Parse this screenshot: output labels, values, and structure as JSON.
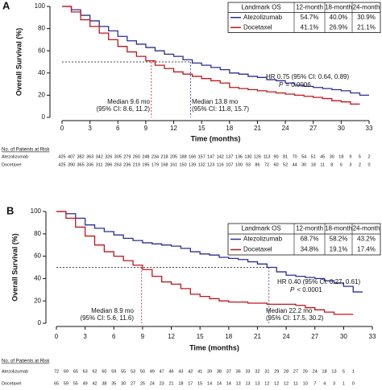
{
  "chart_data": [
    {
      "type": "line",
      "panel_label": "A",
      "xlabel": "Time (months)",
      "ylabel": "Overall Survival (%)",
      "xlim": [
        0,
        33
      ],
      "xticks": [
        0,
        3,
        6,
        9,
        12,
        15,
        18,
        21,
        24,
        27,
        30,
        33
      ],
      "ylim": [
        0,
        100
      ],
      "yticks": [
        0,
        20,
        40,
        60,
        80,
        100
      ],
      "reference_y": 50,
      "series": [
        {
          "name": "Atezolizumab",
          "color": "#2b2f8f",
          "median": 13.8,
          "median_label": "Median 13.8 mo",
          "median_ci": "(95% CI: 11.8, 15.7)",
          "x": [
            0,
            1,
            2,
            3,
            4,
            5,
            6,
            7,
            8,
            9,
            10,
            11,
            12,
            13,
            14,
            15,
            16,
            17,
            18,
            19,
            20,
            21,
            22,
            23,
            24,
            25,
            26,
            27,
            28,
            29,
            30,
            31,
            32,
            33
          ],
          "values": [
            100,
            97,
            92,
            87,
            82,
            78,
            73,
            69,
            66,
            63,
            60,
            57,
            55,
            52,
            49,
            47,
            45,
            43,
            40,
            39,
            37,
            36,
            34,
            33,
            31,
            29,
            28,
            27,
            26,
            25,
            24,
            22,
            20,
            20
          ]
        },
        {
          "name": "Docetaxel",
          "color": "#c0151c",
          "median": 9.6,
          "median_label": "Median 9.6 mo",
          "median_ci": "(95% CI: 8.6, 11.2)",
          "x": [
            0,
            1,
            2,
            3,
            4,
            5,
            6,
            7,
            8,
            9,
            10,
            11,
            12,
            13,
            14,
            15,
            16,
            17,
            18,
            19,
            20,
            21,
            22,
            23,
            24,
            25,
            26,
            27,
            28,
            29,
            30,
            31,
            32
          ],
          "values": [
            100,
            95,
            88,
            82,
            76,
            70,
            64,
            59,
            55,
            51,
            47,
            44,
            41,
            39,
            37,
            35,
            33,
            31,
            27,
            26,
            25,
            24,
            23,
            22,
            21,
            20,
            19,
            18,
            17,
            15,
            14,
            12,
            12
          ]
        }
      ],
      "landmark_table": {
        "header": [
          "Landmark OS",
          "12-month",
          "18-month",
          "24-month"
        ],
        "rows": [
          [
            "54.7%",
            "40.0%",
            "30.9%"
          ],
          [
            "41.1%",
            "26.9%",
            "21.1%"
          ]
        ]
      },
      "hr_text": "HR 0.75 (95% CI: 0.64, 0.89)",
      "p_label": "P",
      "p_value": "= 0.0006",
      "at_risk": {
        "title": "No. of Patients at Risk",
        "rows": [
          [
            425,
            407,
            382,
            363,
            342,
            326,
            305,
            279,
            260,
            248,
            234,
            218,
            205,
            188,
            166,
            157,
            147,
            142,
            137,
            136,
            130,
            126,
            113,
            90,
            81,
            70,
            54,
            51,
            45,
            30,
            18,
            9,
            5,
            2
          ],
          [
            425,
            390,
            365,
            336,
            311,
            286,
            263,
            236,
            219,
            195,
            179,
            168,
            161,
            150,
            139,
            132,
            123,
            116,
            107,
            100,
            93,
            86,
            72,
            60,
            52,
            44,
            30,
            18,
            11,
            8,
            6,
            3,
            2,
            0
          ]
        ]
      }
    },
    {
      "type": "line",
      "panel_label": "B",
      "xlabel": "Time (months)",
      "ylabel": "Overall Survival (%)",
      "xlim": [
        0,
        33
      ],
      "xticks": [
        0,
        3,
        6,
        9,
        12,
        15,
        18,
        21,
        24,
        27,
        30,
        33
      ],
      "ylim": [
        0,
        100
      ],
      "yticks": [
        0,
        20,
        40,
        60,
        80,
        100
      ],
      "reference_y": 50,
      "series": [
        {
          "name": "Atezolizumab",
          "color": "#2b2f8f",
          "median": 22.2,
          "median_label": "Median 22.2 mo",
          "median_ci": "(95% CI: 17.5, 30.2)",
          "x": [
            0,
            1,
            2,
            3,
            4,
            5,
            6,
            7,
            8,
            9,
            10,
            11,
            12,
            13,
            14,
            15,
            16,
            17,
            18,
            19,
            20,
            21,
            22,
            23,
            24,
            25,
            26,
            27,
            28,
            29,
            30,
            31,
            32
          ],
          "values": [
            100,
            98,
            94,
            88,
            85,
            82,
            79,
            76,
            74,
            72,
            71,
            70,
            69,
            67,
            64,
            62,
            61,
            59,
            58,
            57,
            55,
            53,
            50,
            46,
            43,
            42,
            41,
            40,
            38,
            36,
            33,
            28,
            28
          ]
        },
        {
          "name": "Docetaxel",
          "color": "#c0151c",
          "median": 8.9,
          "median_label": "Median 8.9 mo",
          "median_ci": "(95% CI: 5.6, 11.6)",
          "x": [
            0,
            1,
            2,
            3,
            4,
            5,
            6,
            7,
            8,
            9,
            10,
            11,
            12,
            13,
            14,
            15,
            16,
            17,
            18,
            19,
            20,
            21,
            22,
            23,
            24,
            25,
            26,
            27,
            28,
            29,
            30,
            31
          ],
          "values": [
            100,
            94,
            86,
            78,
            70,
            64,
            60,
            56,
            52,
            48,
            42,
            37,
            35,
            31,
            26,
            24,
            22,
            20,
            19,
            19,
            18,
            18,
            17,
            17,
            17,
            16,
            14,
            12,
            10,
            8,
            8,
            8
          ]
        }
      ],
      "landmark_table": {
        "header": [
          "Landmark OS",
          "12-month",
          "18-month",
          "24-month"
        ],
        "rows": [
          [
            "68.7%",
            "58.2%",
            "43.2%"
          ],
          [
            "34.8%",
            "19.1%",
            "17.4%"
          ]
        ]
      },
      "hr_text": "HR 0.40 (95% CI: 0.27, 0.61)",
      "p_label": "P",
      "p_value": "< 0.0001",
      "at_risk": {
        "title": "No. of Patients at Risk",
        "rows": [
          [
            72,
            69,
            65,
            63,
            62,
            60,
            59,
            55,
            53,
            50,
            49,
            47,
            46,
            43,
            42,
            41,
            39,
            38,
            37,
            36,
            33,
            32,
            31,
            29,
            28,
            27,
            26,
            24,
            18,
            13,
            5,
            1
          ],
          [
            65,
            59,
            55,
            49,
            42,
            38,
            35,
            30,
            27,
            25,
            24,
            23,
            21,
            18,
            17,
            15,
            14,
            14,
            14,
            13,
            13,
            13,
            12,
            12,
            12,
            11,
            10,
            7,
            4,
            3,
            1,
            0
          ]
        ]
      }
    }
  ]
}
